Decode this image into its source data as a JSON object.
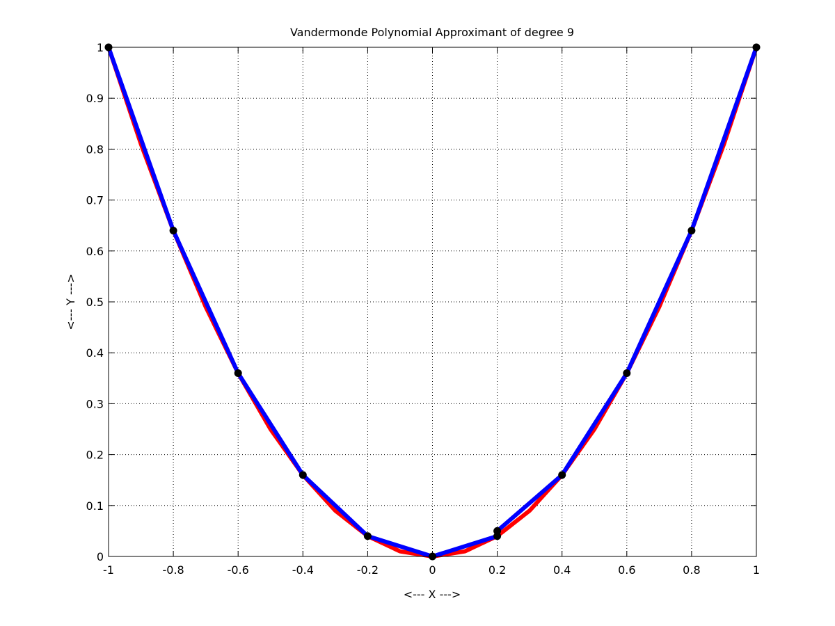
{
  "chart_data": {
    "type": "line",
    "title": "Vandermonde Polynomial Approximant of degree 9",
    "xlabel": "<--- X --->",
    "ylabel": "<--- Y --->",
    "xlim": [
      -1,
      1
    ],
    "ylim": [
      0,
      1
    ],
    "xticks": [
      -1,
      -0.8,
      -0.6,
      -0.4,
      -0.2,
      0,
      0.2,
      0.4,
      0.6,
      0.8,
      1
    ],
    "xtick_labels": [
      "-1",
      "-0.8",
      "-0.6",
      "-0.4",
      "-0.2",
      "0",
      "0.2",
      "0.4",
      "0.6",
      "0.8",
      "1"
    ],
    "yticks": [
      0,
      0.1,
      0.2,
      0.3,
      0.4,
      0.5,
      0.6,
      0.7,
      0.8,
      0.9,
      1
    ],
    "ytick_labels": [
      "0",
      "0.1",
      "0.2",
      "0.3",
      "0.4",
      "0.5",
      "0.6",
      "0.7",
      "0.8",
      "0.9",
      "1"
    ],
    "grid": true,
    "series": [
      {
        "color": "#ff0000",
        "style": "smooth-curve",
        "x": [
          -1,
          -0.9,
          -0.8,
          -0.7,
          -0.6,
          -0.5,
          -0.4,
          -0.3,
          -0.2,
          -0.1,
          0,
          0.1,
          0.2,
          0.3,
          0.4,
          0.5,
          0.6,
          0.7,
          0.8,
          0.9,
          1
        ],
        "y": [
          1,
          0.81,
          0.64,
          0.49,
          0.36,
          0.25,
          0.16,
          0.09,
          0.04,
          0.01,
          0,
          0.01,
          0.04,
          0.09,
          0.16,
          0.25,
          0.36,
          0.49,
          0.64,
          0.81,
          1
        ]
      },
      {
        "color": "#0000ff",
        "style": "polyline",
        "x": [
          -1,
          -0.8,
          -0.6,
          -0.4,
          -0.2,
          0,
          0.2,
          0.2,
          0.4,
          0.6,
          0.8,
          1
        ],
        "y": [
          1,
          0.64,
          0.36,
          0.16,
          0.04,
          0,
          0.04,
          0.05,
          0.16,
          0.36,
          0.64,
          1
        ]
      }
    ],
    "points": {
      "color": "#000000",
      "x": [
        -1,
        -0.8,
        -0.6,
        -0.4,
        -0.2,
        0,
        0.2,
        0.2,
        0.4,
        0.6,
        0.8,
        1
      ],
      "y": [
        1,
        0.64,
        0.36,
        0.16,
        0.04,
        0,
        0.04,
        0.05,
        0.16,
        0.36,
        0.64,
        1
      ]
    }
  }
}
